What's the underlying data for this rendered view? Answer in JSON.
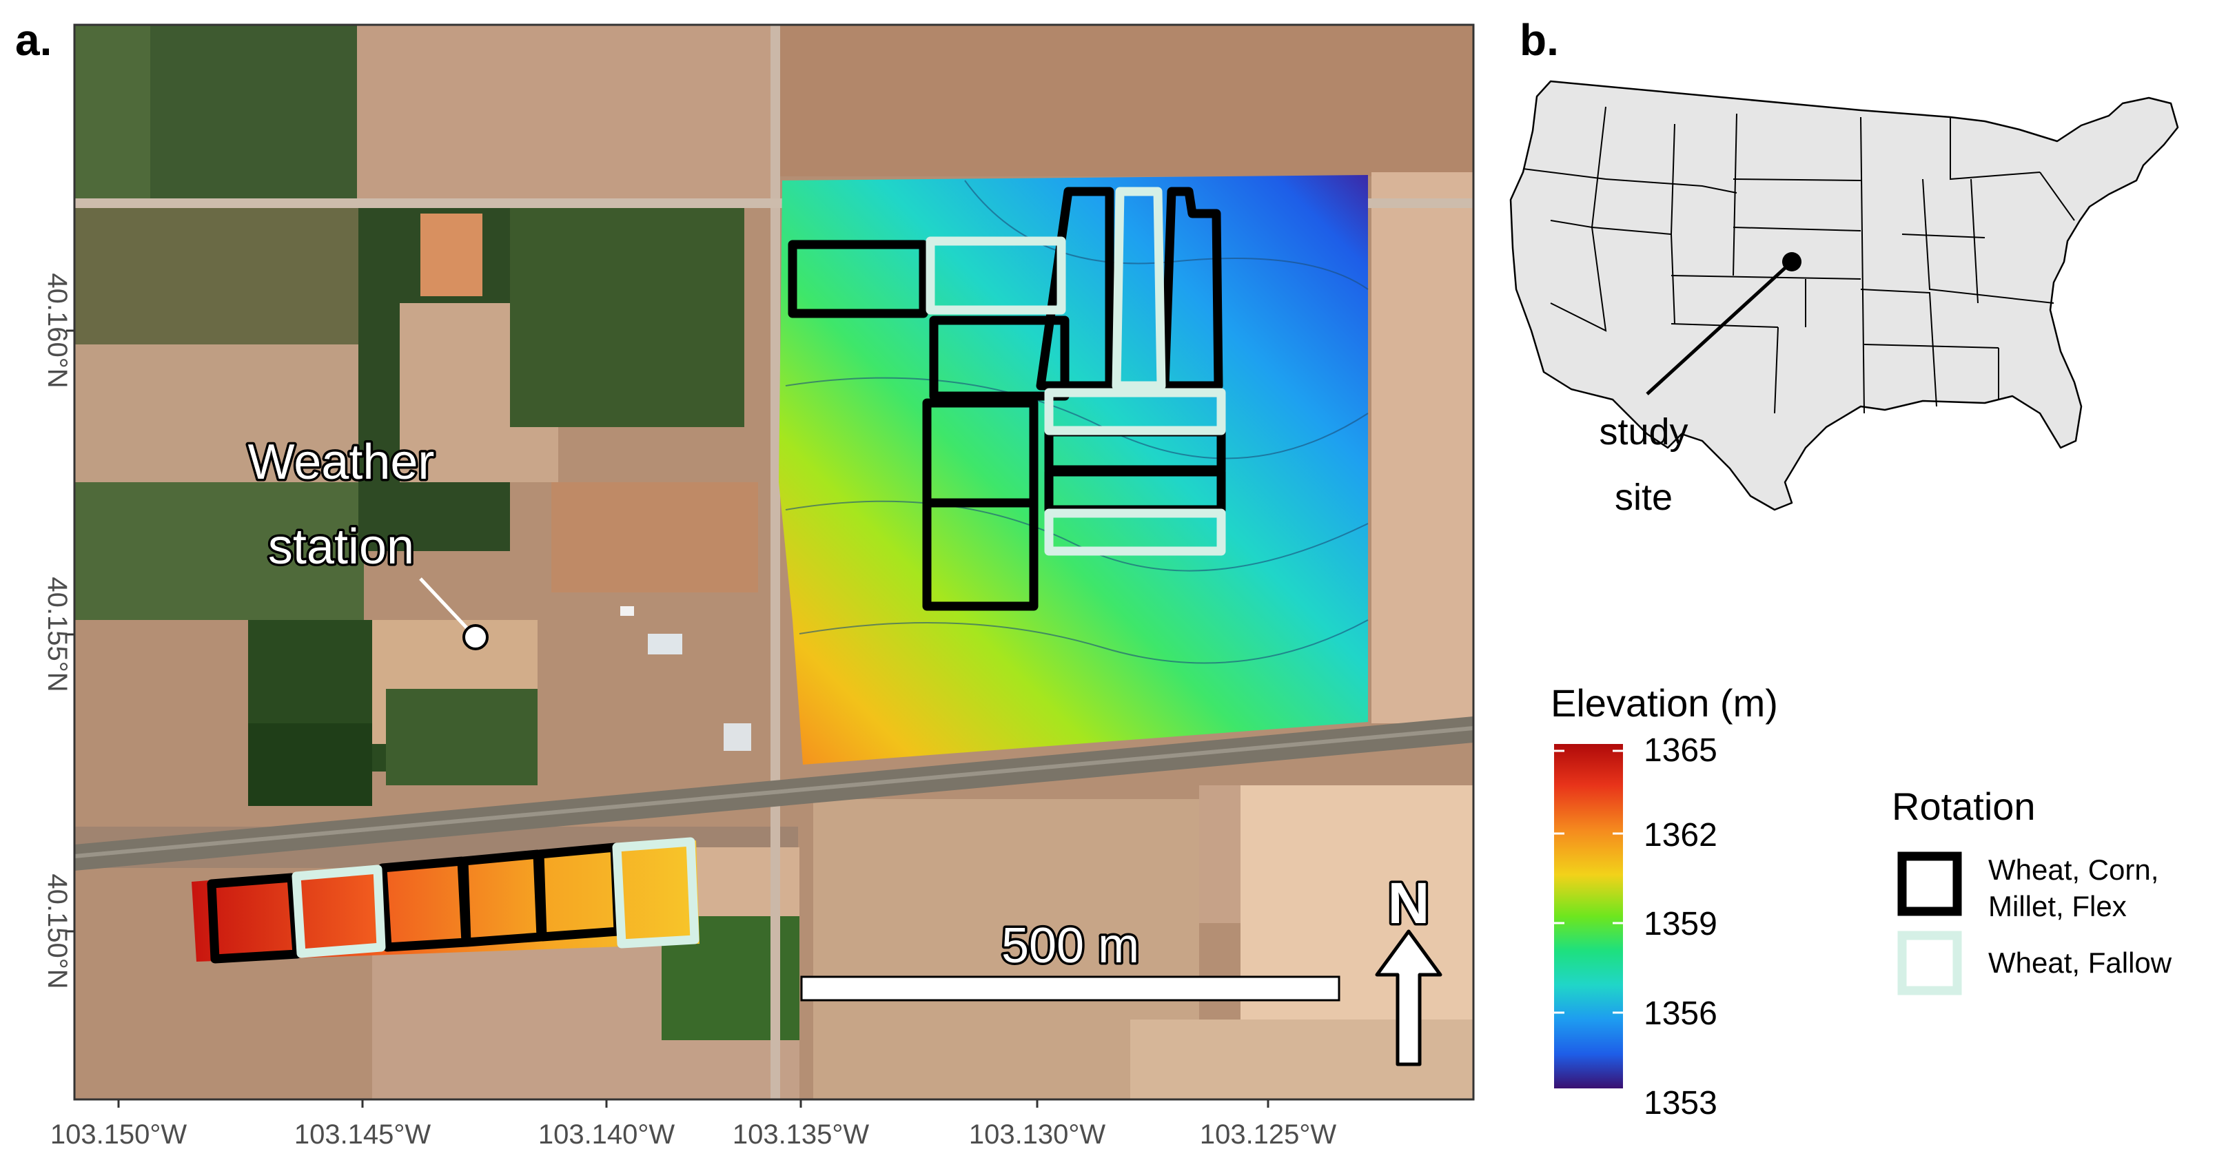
{
  "panels": {
    "a": {
      "letter": "a."
    },
    "b": {
      "letter": "b."
    }
  },
  "map_a": {
    "weather_station": {
      "label_line1": "Weather",
      "label_line2": "station"
    },
    "scale_bar": {
      "label": "500 m"
    },
    "north_arrow": {
      "label": "N"
    },
    "lat_ticks": [
      "40.160°N",
      "40.155°N",
      "40.150°N"
    ],
    "lon_ticks": [
      "103.150°W",
      "103.145°W",
      "103.140°W",
      "103.135°W",
      "103.130°W",
      "103.125°W"
    ]
  },
  "map_b": {
    "site_label_line1": "study",
    "site_label_line2": "site"
  },
  "elevation_legend": {
    "title": "Elevation (m)",
    "ticks": [
      "1365",
      "1362",
      "1359",
      "1356",
      "1353"
    ],
    "colors": [
      "#c40f0f",
      "#f2541e",
      "#f6a623",
      "#e8e000",
      "#6ee61e",
      "#1ee07e",
      "#20d6c8",
      "#1e9cf0",
      "#1e5ee8",
      "#2a2ac2",
      "#3a1070"
    ]
  },
  "rotation_legend": {
    "title": "Rotation",
    "items": [
      {
        "label_line1": "Wheat, Corn,",
        "label_line2": "Millet, Flex",
        "color": "#000000"
      },
      {
        "label_line1": "Wheat, Fallow",
        "label_line2": "",
        "color": "#d5f0e6"
      }
    ]
  }
}
